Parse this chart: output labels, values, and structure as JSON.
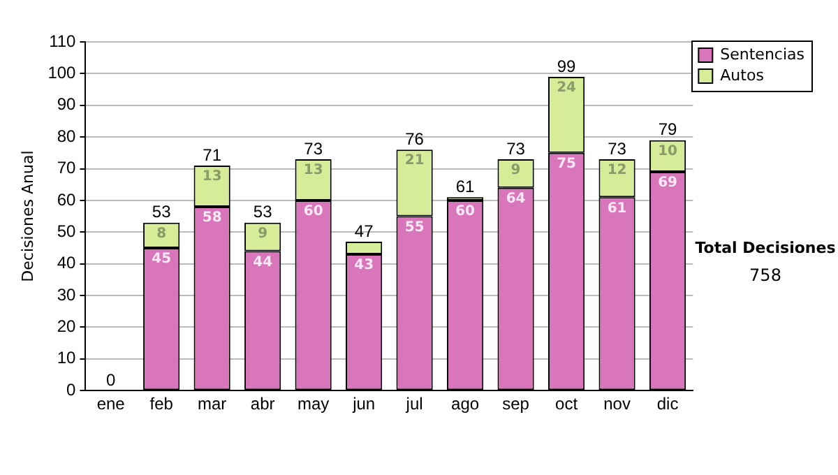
{
  "chart_data": {
    "type": "bar",
    "stacked": true,
    "ylabel": "Decisiones Anual",
    "categories": [
      "ene",
      "feb",
      "mar",
      "abr",
      "may",
      "jun",
      "jul",
      "ago",
      "sep",
      "oct",
      "nov",
      "dic"
    ],
    "series": [
      {
        "name": "Sentencias",
        "color": "#d975bb",
        "values": [
          0,
          45,
          58,
          44,
          60,
          43,
          55,
          60,
          64,
          75,
          61,
          69
        ],
        "value_labels": [
          null,
          "45",
          "58",
          "44",
          "60",
          "43",
          "55",
          "60",
          "64",
          "75",
          "61",
          "69"
        ]
      },
      {
        "name": "Autos",
        "color": "#d6ec98",
        "values": [
          0,
          8,
          13,
          9,
          13,
          4,
          21,
          1,
          9,
          24,
          12,
          10
        ],
        "value_labels": [
          null,
          "8",
          "13",
          "9",
          "13",
          null,
          "21",
          null,
          "9",
          "24",
          "12",
          "10"
        ]
      }
    ],
    "totals": [
      "0",
      "53",
      "71",
      "53",
      "73",
      "47",
      "76",
      "61",
      "73",
      "99",
      "73",
      "79"
    ],
    "ylim": [
      0,
      110
    ],
    "yticks": [
      0,
      10,
      20,
      30,
      40,
      50,
      60,
      70,
      80,
      90,
      100,
      110
    ],
    "grid": "y",
    "legend": "right",
    "annotations": [
      "Total Decisiones",
      "758"
    ]
  }
}
